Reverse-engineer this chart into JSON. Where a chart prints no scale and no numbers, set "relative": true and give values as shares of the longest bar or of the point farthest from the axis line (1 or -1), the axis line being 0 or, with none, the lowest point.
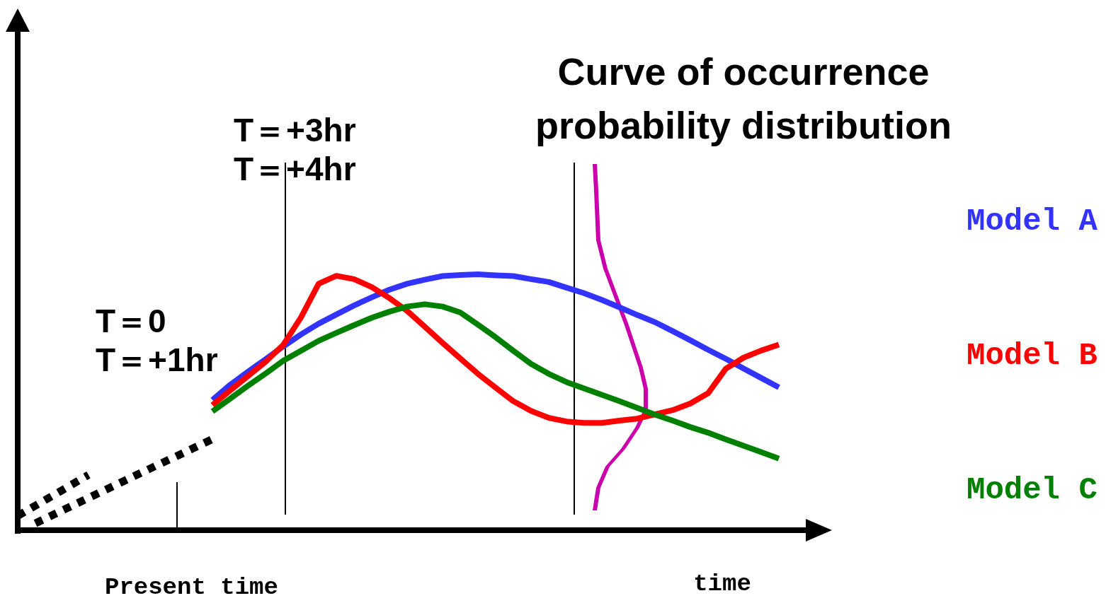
{
  "chart_data": {
    "type": "line",
    "relative": true,
    "title": "Curve of occurrence\nprobability distribution",
    "xlabel": "time",
    "marker": "none",
    "line_style": "solid",
    "categories": [
      null,
      null,
      null,
      null,
      null,
      null,
      null,
      null,
      null,
      null,
      null,
      null,
      null,
      null,
      null,
      null,
      null,
      null,
      null,
      null,
      null,
      null,
      null,
      null,
      null,
      null,
      null,
      null,
      null,
      null,
      null,
      null,
      null,
      null,
      null,
      null,
      null,
      null,
      null,
      null,
      null,
      null,
      null,
      null
    ],
    "annotations": [
      "T＝0",
      "T＝+1hr",
      "T＝+3hr",
      "T＝+4hr",
      "Present time"
    ],
    "series": [
      {
        "name": "Model A",
        "color": "#3333ff",
        "values": [
          null,
          null,
          null,
          null,
          null,
          null,
          null,
          null,
          null,
          null,
          null,
          0.509,
          0.568,
          0.619,
          0.668,
          0.718,
          0.765,
          0.807,
          0.843,
          0.878,
          0.91,
          0.94,
          0.963,
          0.979,
          0.993,
          0.997,
          1,
          0.996,
          0.993,
          0.981,
          0.97,
          0.948,
          0.926,
          0.9,
          0.871,
          0.841,
          0.813,
          0.778,
          0.742,
          0.705,
          0.67,
          0.632,
          0.595,
          0.558
        ]
      },
      {
        "name": "Model B",
        "color": "#ff0000",
        "values": [
          null,
          null,
          null,
          null,
          null,
          null,
          null,
          null,
          null,
          null,
          null,
          0.489,
          0.546,
          0.602,
          0.658,
          0.724,
          0.831,
          0.963,
          0.994,
          0.981,
          0.95,
          0.907,
          0.857,
          0.795,
          0.732,
          0.671,
          0.611,
          0.557,
          0.504,
          0.466,
          0.439,
          0.425,
          0.419,
          0.419,
          0.428,
          0.436,
          0.453,
          0.469,
          0.495,
          0.535,
          0.631,
          0.674,
          0.702,
          0.725
        ]
      },
      {
        "name": "Model C",
        "color": "#008000",
        "values": [
          null,
          null,
          null,
          null,
          null,
          null,
          null,
          null,
          null,
          null,
          null,
          0.464,
          0.514,
          0.564,
          0.612,
          0.662,
          0.701,
          0.74,
          0.771,
          0.801,
          0.83,
          0.854,
          0.874,
          0.883,
          0.874,
          0.851,
          0.803,
          0.754,
          0.701,
          0.65,
          0.611,
          0.579,
          0.554,
          0.529,
          0.504,
          0.478,
          0.452,
          0.428,
          0.403,
          0.381,
          0.355,
          0.33,
          0.305,
          0.28
        ]
      },
      {
        "color": "#000000",
        "line_style": "dotted",
        "values": [
          0.056,
          0.096,
          0.136,
          0.176,
          0.216,
          null,
          null,
          null,
          null,
          null,
          null,
          null,
          null,
          null,
          null,
          null,
          null,
          null,
          null,
          null,
          null,
          null,
          null,
          null,
          null,
          null,
          null,
          null,
          null,
          null,
          null,
          null,
          null,
          null,
          null,
          null,
          null,
          null,
          null,
          null,
          null,
          null,
          null,
          null
        ]
      },
      {
        "color": "#000000",
        "line_style": "dotted",
        "values": [
          null,
          0.027,
          0.06,
          0.093,
          0.126,
          0.159,
          0.192,
          0.225,
          0.258,
          0.29,
          0.323,
          0.356,
          null,
          null,
          null,
          null,
          null,
          null,
          null,
          null,
          null,
          null,
          null,
          null,
          null,
          null,
          null,
          null,
          null,
          null,
          null,
          null,
          null,
          null,
          null,
          null,
          null,
          null,
          null,
          null,
          null,
          null,
          null,
          null
        ]
      }
    ]
  }
}
